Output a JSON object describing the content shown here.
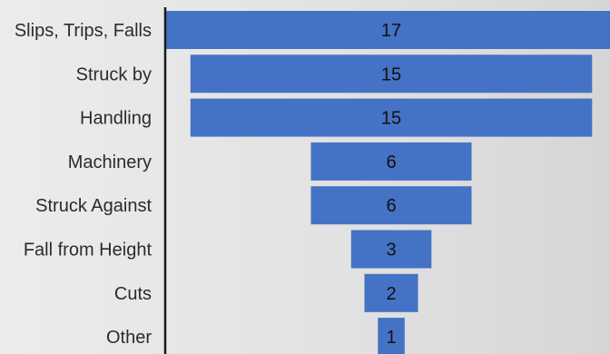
{
  "chart_data": {
    "type": "bar",
    "subtype": "funnel",
    "orientation": "horizontal",
    "categories": [
      "Slips, Trips, Falls",
      "Struck by",
      "Handling",
      "Machinery",
      "Struck Against",
      "Fall from Height",
      "Cuts",
      "Other"
    ],
    "values": [
      17,
      15,
      15,
      6,
      6,
      3,
      2,
      1
    ],
    "title": "",
    "xlabel": "",
    "ylabel": "",
    "data_labels": true,
    "legend": "none",
    "grid": false,
    "colors": {
      "bar": "#4472c4",
      "axis": "#1a1a1a"
    }
  }
}
